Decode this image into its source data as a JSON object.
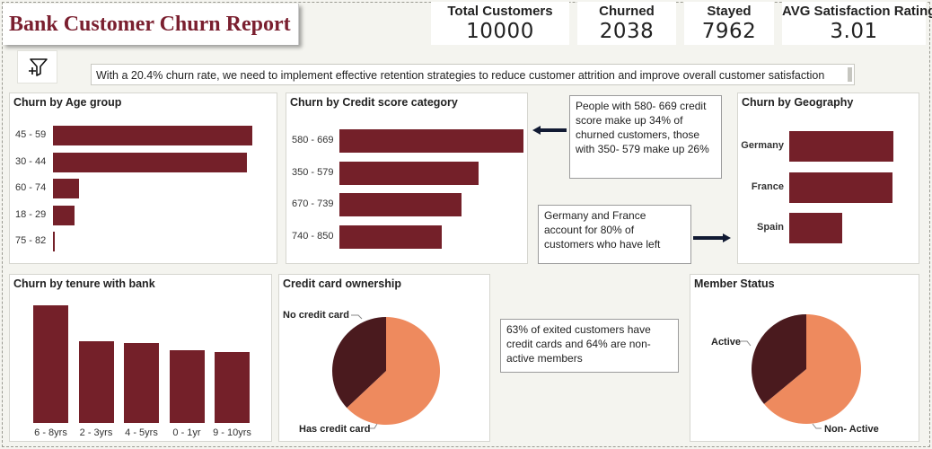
{
  "report": {
    "title": "Bank Customer Churn Report"
  },
  "kpis": [
    {
      "label": "Total Customers",
      "value": "10000"
    },
    {
      "label": "Churned",
      "value": "2038"
    },
    {
      "label": "Stayed",
      "value": "7962"
    },
    {
      "label": "AVG Satisfaction Rating",
      "value": "3.01"
    }
  ],
  "filter": {
    "icon": "filter-add-icon"
  },
  "summary": {
    "text": "With a 20.4% churn rate, we need to implement effective retention strategies to reduce customer attrition and improve overall customer satisfaction"
  },
  "colors": {
    "bar": "#742029",
    "pie_dark": "#4a1a1e",
    "pie_light": "#ee8a5e",
    "title": "#7a1f2f"
  },
  "charts": {
    "age": {
      "title": "Churn by Age group",
      "chart_data": {
        "type": "bar",
        "orientation": "horizontal",
        "categories": [
          "45 - 59",
          "30 - 44",
          "60 - 74",
          "18 - 29",
          "75 - 82"
        ],
        "values": [
          1000,
          975,
          130,
          110,
          8
        ],
        "xlim": [
          0,
          1000
        ]
      }
    },
    "credit": {
      "title": "Churn by Credit score category",
      "chart_data": {
        "type": "bar",
        "orientation": "horizontal",
        "categories": [
          "580 - 669",
          "350 - 579",
          "670 - 739",
          "740 - 850"
        ],
        "values": [
          700,
          530,
          465,
          390
        ],
        "xlim": [
          0,
          700
        ]
      }
    },
    "geo": {
      "title": "Churn by Geography",
      "chart_data": {
        "type": "bar",
        "orientation": "horizontal",
        "categories": [
          "Germany",
          "France",
          "Spain"
        ],
        "values": [
          814,
          810,
          413
        ],
        "xlim": [
          0,
          814
        ]
      }
    },
    "tenure": {
      "title": "Churn by tenure with bank",
      "chart_data": {
        "type": "bar",
        "orientation": "vertical",
        "categories": [
          "6 - 8yrs",
          "2 - 3yrs",
          "4 - 5yrs",
          "0 - 1yr",
          "9 - 10yrs"
        ],
        "values": [
          615,
          425,
          420,
          380,
          370
        ],
        "ylim": [
          0,
          615
        ]
      }
    },
    "card": {
      "title": "Credit card ownership",
      "chart_data": {
        "type": "pie",
        "labels": [
          "Has credit card",
          "No credit card"
        ],
        "values": [
          63,
          37
        ]
      }
    },
    "member": {
      "title": "Member Status",
      "chart_data": {
        "type": "pie",
        "labels": [
          "Non- Active",
          "Active"
        ],
        "values": [
          64,
          36
        ]
      }
    }
  },
  "notes": {
    "credit": "People with 580- 669 credit score  make up 34% of churned customers, those with 350- 579 make up 26%",
    "geo": "Germany and France account for 80% of customers who have left",
    "card_member": "63% of exited customers have credit cards and 64% are non-active members"
  }
}
